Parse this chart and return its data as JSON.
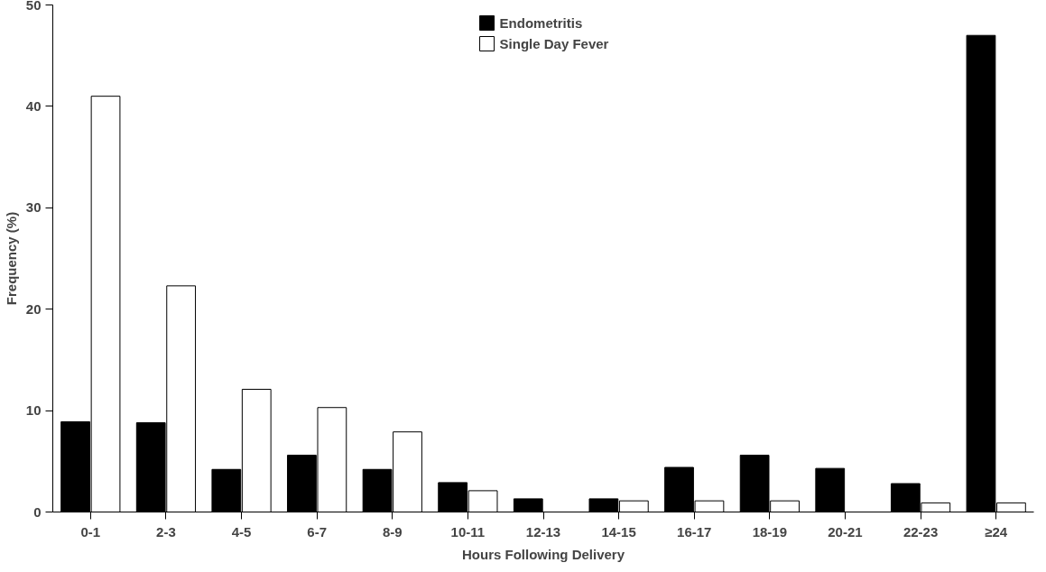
{
  "chart_data": {
    "type": "bar",
    "xlabel": "Hours Following Delivery",
    "ylabel": "Frequency (%)",
    "categories": [
      "0-1",
      "2-3",
      "4-5",
      "6-7",
      "8-9",
      "10-11",
      "12-13",
      "14-15",
      "16-17",
      "18-19",
      "20-21",
      "22-23",
      "≥24"
    ],
    "series": [
      {
        "name": "Endometritis",
        "color": "#000000",
        "values": [
          8.9,
          8.8,
          4.2,
          5.6,
          4.2,
          2.9,
          1.3,
          1.3,
          4.4,
          5.6,
          4.3,
          2.8,
          47
        ]
      },
      {
        "name": "Single Day Fever",
        "color": "#ffffff",
        "values": [
          41,
          22.3,
          12.1,
          10.3,
          7.9,
          2.1,
          0,
          1.1,
          1.1,
          1.1,
          0,
          0.9,
          0.9
        ]
      }
    ],
    "ylim": [
      0,
      50
    ],
    "yticks": [
      0,
      10,
      20,
      30,
      40,
      50
    ],
    "grid": false,
    "legend": "top"
  }
}
